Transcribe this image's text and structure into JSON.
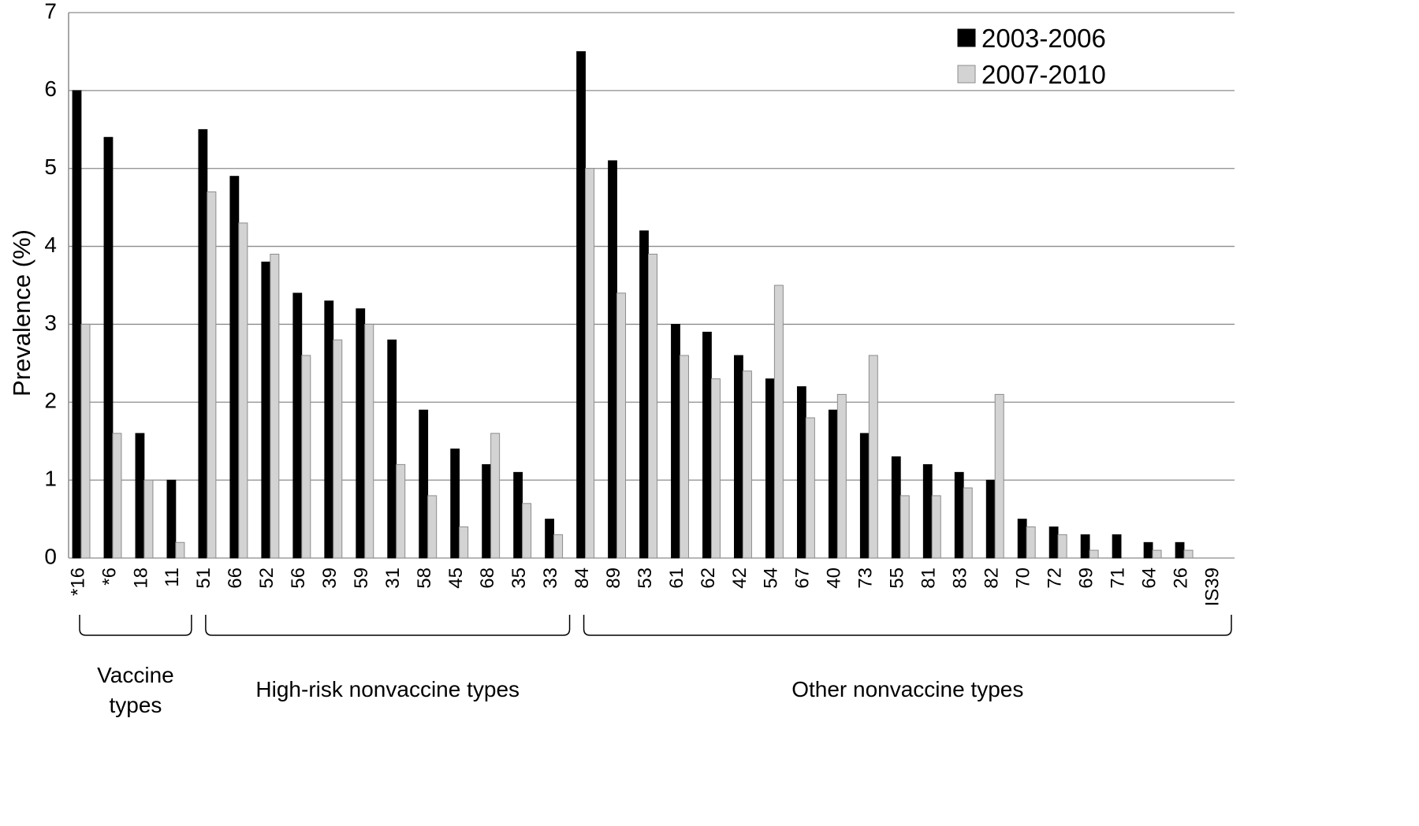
{
  "chart_data": {
    "type": "bar",
    "ylabel": "Prevalence (%)",
    "xlabel": "",
    "ylim": [
      0,
      7
    ],
    "yticks": [
      "0",
      "1",
      "2",
      "3",
      "4",
      "5",
      "6",
      "7"
    ],
    "grid": true,
    "legend_position": "top-right",
    "categories": [
      "*16",
      "*6",
      "18",
      "11",
      "51",
      "66",
      "52",
      "56",
      "39",
      "59",
      "31",
      "58",
      "45",
      "68",
      "35",
      "33",
      "84",
      "89",
      "53",
      "61",
      "62",
      "42",
      "54",
      "67",
      "40",
      "73",
      "55",
      "81",
      "83",
      "82",
      "70",
      "72",
      "69",
      "71",
      "64",
      "26",
      "IS39"
    ],
    "series": [
      {
        "name": "2003-2006",
        "color": "#000000",
        "values": [
          6.0,
          5.4,
          1.6,
          1.0,
          5.5,
          4.9,
          3.8,
          3.4,
          3.3,
          3.2,
          2.8,
          1.9,
          1.4,
          1.2,
          1.1,
          0.5,
          6.5,
          5.1,
          4.2,
          3.0,
          2.9,
          2.6,
          2.3,
          2.2,
          1.9,
          1.6,
          1.3,
          1.2,
          1.1,
          1.0,
          0.5,
          0.4,
          0.3,
          0.3,
          0.2,
          0.2,
          0.0
        ]
      },
      {
        "name": "2007-2010",
        "color": "#d3d3d3",
        "values": [
          3.0,
          1.6,
          1.0,
          0.2,
          4.7,
          4.3,
          3.9,
          2.6,
          2.8,
          3.0,
          1.2,
          0.8,
          0.4,
          1.6,
          0.7,
          0.3,
          5.0,
          3.4,
          3.9,
          2.6,
          2.3,
          2.4,
          3.5,
          1.8,
          2.1,
          2.6,
          0.8,
          0.8,
          0.9,
          2.1,
          0.4,
          0.3,
          0.1,
          0.0,
          0.1,
          0.1,
          0.0
        ]
      }
    ],
    "groups": [
      {
        "label_lines": [
          "Vaccine",
          "types"
        ],
        "from": 0,
        "to": 3
      },
      {
        "label_lines": [
          "High-risk nonvaccine types"
        ],
        "from": 4,
        "to": 15
      },
      {
        "label_lines": [
          "Other nonvaccine types"
        ],
        "from": 16,
        "to": 36
      }
    ]
  }
}
